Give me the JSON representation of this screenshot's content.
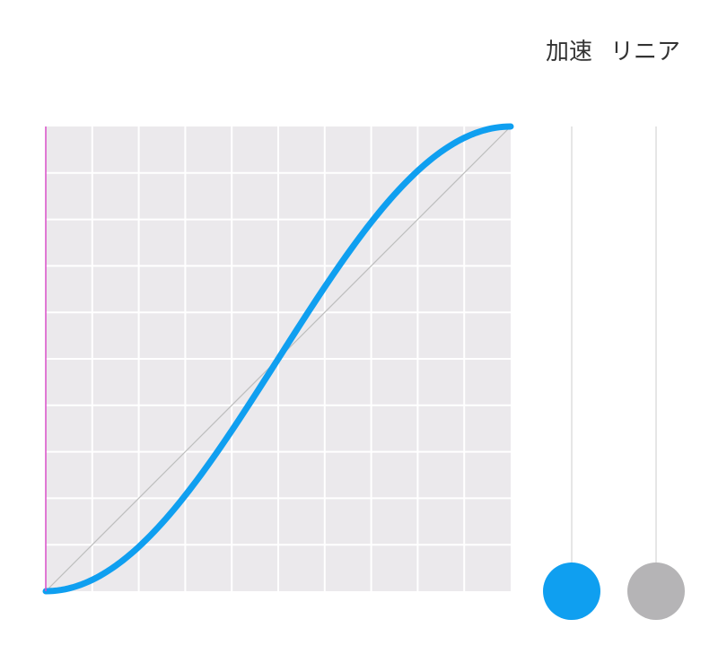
{
  "labels": {
    "accelerated": "加速",
    "linear": "リニア"
  },
  "colors": {
    "background": "#ffffff",
    "grid_background": "#ebe9ec",
    "grid_lines": "#ffffff",
    "accent_curve": "#0f9ff0",
    "linear_line": "#bdbdbd",
    "time_marker": "#d94fc8",
    "linear_ball": "#b5b4b6",
    "track": "#d6d6d6"
  },
  "graph": {
    "grid_divisions": 10,
    "progress": 0
  },
  "tracks": [
    {
      "name": "accelerated",
      "progress": 0,
      "color": "#0f9ff0"
    },
    {
      "name": "linear",
      "progress": 0,
      "color": "#b5b4b6"
    }
  ]
}
